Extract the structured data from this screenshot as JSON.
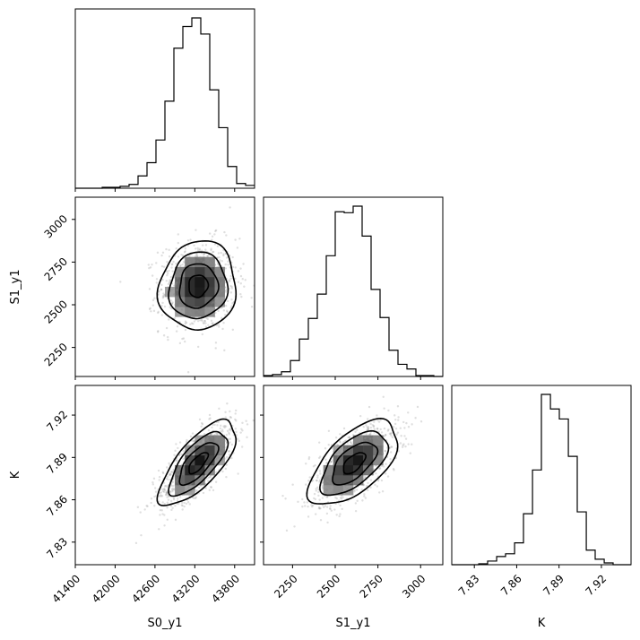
{
  "chart_data": {
    "type": "corner",
    "parameters": [
      "S0_y1",
      "S1_y1",
      "K"
    ],
    "axis_labels": {
      "S0_y1": "S0_y1",
      "S1_y1": "S1_y1",
      "K": "K"
    },
    "ranges": {
      "S0_y1": [
        41400,
        44100
      ],
      "S1_y1": [
        2080,
        3130
      ],
      "K": [
        7.814,
        7.941
      ]
    },
    "ticks": {
      "S0_y1": [
        {
          "v": 41400,
          "label": "41400"
        },
        {
          "v": 42000,
          "label": "42000"
        },
        {
          "v": 42600,
          "label": "42600"
        },
        {
          "v": 43200,
          "label": "43200"
        },
        {
          "v": 43800,
          "label": "43800"
        }
      ],
      "S1_y1": [
        {
          "v": 2250,
          "label": "2250"
        },
        {
          "v": 2500,
          "label": "2500"
        },
        {
          "v": 2750,
          "label": "2750"
        },
        {
          "v": 3000,
          "label": "3000"
        }
      ],
      "K": [
        {
          "v": 7.83,
          "label": "7.83"
        },
        {
          "v": 7.86,
          "label": "7.86"
        },
        {
          "v": 7.89,
          "label": "7.89"
        },
        {
          "v": 7.92,
          "label": "7.92"
        }
      ]
    },
    "histograms": {
      "S0_y1": {
        "bin_edges": [
          41400,
          41535,
          41670,
          41805,
          41940,
          42075,
          42210,
          42345,
          42480,
          42615,
          42750,
          42885,
          43020,
          43155,
          43290,
          43425,
          43560,
          43695,
          43830,
          43965,
          44100
        ],
        "counts": [
          0,
          0,
          0,
          1,
          1,
          2,
          4,
          13,
          27,
          51,
          92,
          148,
          171,
          180,
          163,
          104,
          64,
          23,
          5,
          3
        ]
      },
      "S1_y1": {
        "bin_edges": [
          2080,
          2132.5,
          2185,
          2237.5,
          2290,
          2342.5,
          2395,
          2447.5,
          2500,
          2552.5,
          2605,
          2657.5,
          2710,
          2762.5,
          2815,
          2867.5,
          2920,
          2972.5,
          3025,
          3077.5,
          3130
        ],
        "counts": [
          1,
          2,
          5,
          17,
          40,
          62,
          88,
          129,
          176,
          175,
          182,
          150,
          93,
          63,
          28,
          13,
          8,
          1,
          1,
          0
        ]
      },
      "K": {
        "bin_edges": [
          7.814,
          7.8204,
          7.8267,
          7.8331,
          7.8394,
          7.8458,
          7.8521,
          7.8585,
          7.8648,
          7.8712,
          7.8775,
          7.8839,
          7.8902,
          7.8966,
          7.9029,
          7.9093,
          7.9156,
          7.922,
          7.9283,
          7.9347,
          7.941
        ],
        "counts": [
          0,
          0,
          0,
          1,
          4,
          9,
          12,
          24,
          56,
          104,
          187,
          171,
          160,
          119,
          58,
          16,
          6,
          2,
          0,
          0
        ]
      }
    },
    "joint": {
      "S1_y1_vs_S0_y1": {
        "mean": [
          43250,
          2610
        ],
        "sd": [
          290,
          130
        ],
        "corr": 0.07
      },
      "K_vs_S0_y1": {
        "mean": [
          43250,
          7.886
        ],
        "sd": [
          290,
          0.015
        ],
        "corr": 0.72
      },
      "K_vs_S1_y1": {
        "mean": [
          2610,
          7.886
        ],
        "sd": [
          130,
          0.015
        ],
        "corr": 0.6
      }
    },
    "contour_levels": [
      0.5,
      1.0,
      1.5,
      2.0
    ],
    "grid": false,
    "legend": "none",
    "colors": {
      "lines": "#000000",
      "samples": "#8c8c8c",
      "density_dark": "#1a1a1a"
    }
  }
}
